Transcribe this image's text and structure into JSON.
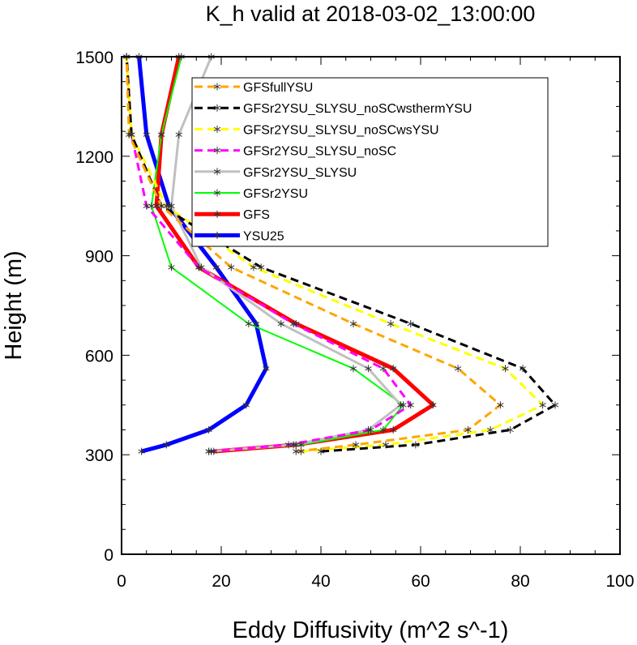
{
  "chart_data": {
    "type": "line",
    "title": "K_h valid at 2018-03-02_13:00:00",
    "xlabel": "Eddy Diffusivity (m^2 s^-1)",
    "ylabel": "Height (m)",
    "xlim": [
      0,
      100
    ],
    "ylim": [
      0,
      1500
    ],
    "xticks": [
      "0",
      "20",
      "40",
      "60",
      "80",
      "100"
    ],
    "yticks": [
      "0",
      "300",
      "600",
      "900",
      "1200",
      "1500"
    ],
    "grid": false,
    "legend_position": "top-center",
    "series": [
      {
        "name": "GFSfullYSU",
        "color": "#ffa500",
        "dash": "dashed",
        "width": 3,
        "points": [
          [
            35,
            310
          ],
          [
            47,
            330
          ],
          [
            69.5,
            375
          ],
          [
            76,
            450
          ],
          [
            67.5,
            560
          ],
          [
            46.5,
            695
          ],
          [
            22,
            865
          ],
          [
            8,
            1050
          ],
          [
            1.5,
            1265
          ],
          [
            1,
            1500
          ]
        ]
      },
      {
        "name": "GFSr2YSU_SLYSU_noSCwsthermYSU",
        "color": "#000000",
        "dash": "dashed",
        "width": 3,
        "points": [
          [
            40,
            310
          ],
          [
            59,
            330
          ],
          [
            78,
            375
          ],
          [
            87,
            450
          ],
          [
            80.5,
            560
          ],
          [
            58,
            695
          ],
          [
            28,
            865
          ],
          [
            8,
            1050
          ],
          [
            2,
            1265
          ],
          [
            1,
            1500
          ]
        ]
      },
      {
        "name": "GFSr2YSU_SLYSU_noSCwsYSU",
        "color": "#ffff00",
        "dash": "dashed",
        "width": 3,
        "points": [
          [
            36,
            310
          ],
          [
            53,
            330
          ],
          [
            74,
            375
          ],
          [
            84.5,
            450
          ],
          [
            77,
            560
          ],
          [
            54,
            695
          ],
          [
            26.5,
            865
          ],
          [
            9,
            1050
          ],
          [
            2,
            1265
          ],
          [
            1,
            1500
          ]
        ]
      },
      {
        "name": "GFSr2YSU_SLYSU_noSC",
        "color": "#ff00ff",
        "dash": "dashed",
        "width": 3,
        "points": [
          [
            17.5,
            310
          ],
          [
            33.5,
            330
          ],
          [
            50,
            375
          ],
          [
            58,
            450
          ],
          [
            52.5,
            560
          ],
          [
            34.5,
            695
          ],
          [
            15.5,
            865
          ],
          [
            5,
            1050
          ],
          [
            2,
            1265
          ],
          [
            1,
            1500
          ]
        ]
      },
      {
        "name": "GFSr2YSU_SLYSU",
        "color": "#c0c0c0",
        "dash": "solid",
        "width": 3,
        "points": [
          [
            17.5,
            310
          ],
          [
            34.5,
            330
          ],
          [
            49.5,
            375
          ],
          [
            56,
            450
          ],
          [
            49.5,
            560
          ],
          [
            32,
            695
          ],
          [
            16,
            865
          ],
          [
            10,
            1050
          ],
          [
            11.5,
            1265
          ],
          [
            18,
            1500
          ]
        ]
      },
      {
        "name": "GFSr2YSU",
        "color": "#00ff00",
        "dash": "solid",
        "width": 2,
        "points": [
          [
            18,
            310
          ],
          [
            36,
            330
          ],
          [
            52.5,
            375
          ],
          [
            56.5,
            450
          ],
          [
            46.5,
            560
          ],
          [
            25.5,
            695
          ],
          [
            10,
            865
          ],
          [
            6,
            1050
          ],
          [
            8,
            1265
          ],
          [
            12,
            1500
          ]
        ]
      },
      {
        "name": "GFS",
        "color": "#ff0000",
        "dash": "solid",
        "width": 5,
        "points": [
          [
            18.5,
            310
          ],
          [
            35,
            330
          ],
          [
            54.5,
            375
          ],
          [
            62.5,
            450
          ],
          [
            54.5,
            560
          ],
          [
            35,
            695
          ],
          [
            15.5,
            865
          ],
          [
            7,
            1050
          ],
          [
            8,
            1265
          ],
          [
            11.5,
            1500
          ]
        ]
      },
      {
        "name": "YSU25",
        "color": "#0000ff",
        "dash": "solid",
        "width": 5,
        "points": [
          [
            4,
            310
          ],
          [
            9,
            330
          ],
          [
            17.5,
            375
          ],
          [
            25,
            450
          ],
          [
            29,
            560
          ],
          [
            27,
            695
          ],
          [
            19,
            865
          ],
          [
            9.5,
            1050
          ],
          [
            5,
            1265
          ],
          [
            3.5,
            1500
          ]
        ]
      }
    ]
  }
}
